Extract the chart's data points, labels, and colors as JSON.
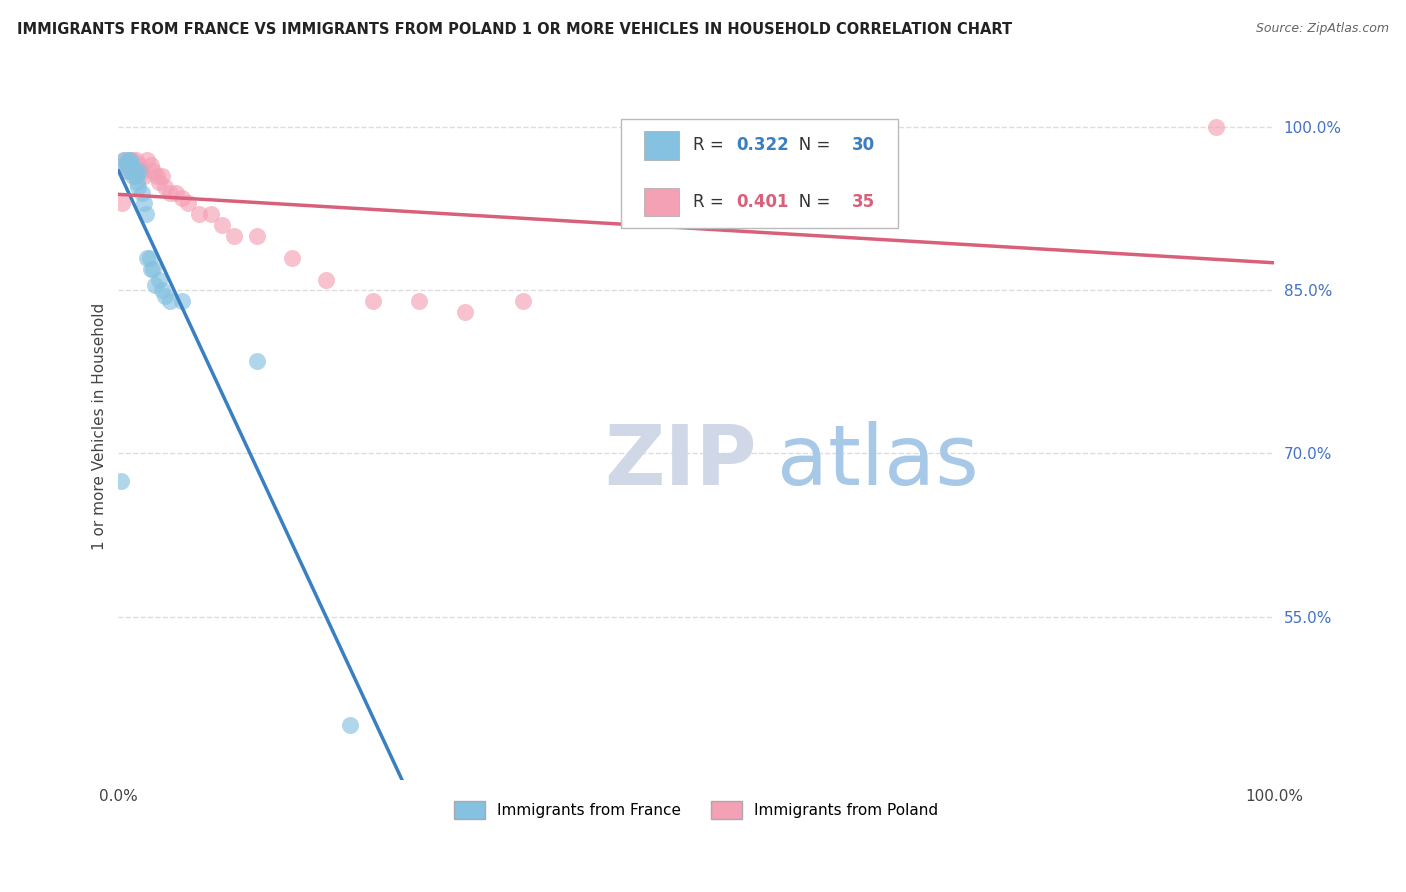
{
  "title": "IMMIGRANTS FROM FRANCE VS IMMIGRANTS FROM POLAND 1 OR MORE VEHICLES IN HOUSEHOLD CORRELATION CHART",
  "source": "Source: ZipAtlas.com",
  "ylabel": "1 or more Vehicles in Household",
  "legend_label_france": "Immigrants from France",
  "legend_label_poland": "Immigrants from Poland",
  "R_france": 0.322,
  "N_france": 30,
  "R_poland": 0.401,
  "N_poland": 35,
  "color_france": "#85c1e0",
  "color_poland": "#f4a0b5",
  "line_color_france": "#3a7fc1",
  "line_color_poland": "#d9607a",
  "xlim": [
    0.0,
    1.0
  ],
  "ylim": [
    0.4,
    1.05
  ],
  "yticks": [
    0.55,
    0.7,
    0.85,
    1.0
  ],
  "ytick_labels": [
    "55.0%",
    "70.0%",
    "85.0%",
    "100.0%"
  ],
  "france_x": [
    0.002,
    0.004,
    0.005,
    0.007,
    0.008,
    0.009,
    0.01,
    0.011,
    0.012,
    0.013,
    0.014,
    0.015,
    0.016,
    0.017,
    0.018,
    0.02,
    0.022,
    0.024,
    0.025,
    0.027,
    0.028,
    0.03,
    0.032,
    0.035,
    0.038,
    0.04,
    0.045,
    0.055,
    0.12,
    0.2
  ],
  "france_y": [
    0.675,
    0.965,
    0.97,
    0.96,
    0.97,
    0.965,
    0.97,
    0.96,
    0.965,
    0.955,
    0.96,
    0.955,
    0.95,
    0.945,
    0.96,
    0.94,
    0.93,
    0.92,
    0.88,
    0.88,
    0.87,
    0.87,
    0.855,
    0.86,
    0.85,
    0.845,
    0.84,
    0.84,
    0.785,
    0.45
  ],
  "poland_x": [
    0.003,
    0.005,
    0.007,
    0.008,
    0.01,
    0.012,
    0.013,
    0.015,
    0.017,
    0.018,
    0.02,
    0.022,
    0.025,
    0.028,
    0.03,
    0.033,
    0.035,
    0.038,
    0.04,
    0.045,
    0.05,
    0.055,
    0.06,
    0.07,
    0.08,
    0.09,
    0.1,
    0.12,
    0.15,
    0.18,
    0.22,
    0.26,
    0.3,
    0.35,
    0.95
  ],
  "poland_y": [
    0.93,
    0.97,
    0.965,
    0.96,
    0.97,
    0.97,
    0.965,
    0.97,
    0.96,
    0.965,
    0.96,
    0.955,
    0.97,
    0.965,
    0.96,
    0.955,
    0.95,
    0.955,
    0.945,
    0.94,
    0.94,
    0.935,
    0.93,
    0.92,
    0.92,
    0.91,
    0.9,
    0.9,
    0.88,
    0.86,
    0.84,
    0.84,
    0.83,
    0.84,
    1.0
  ],
  "watermark_zip_color": "#d0d8e8",
  "watermark_atlas_color": "#a8c8e8",
  "background_color": "#ffffff",
  "grid_color": "#dddddd"
}
